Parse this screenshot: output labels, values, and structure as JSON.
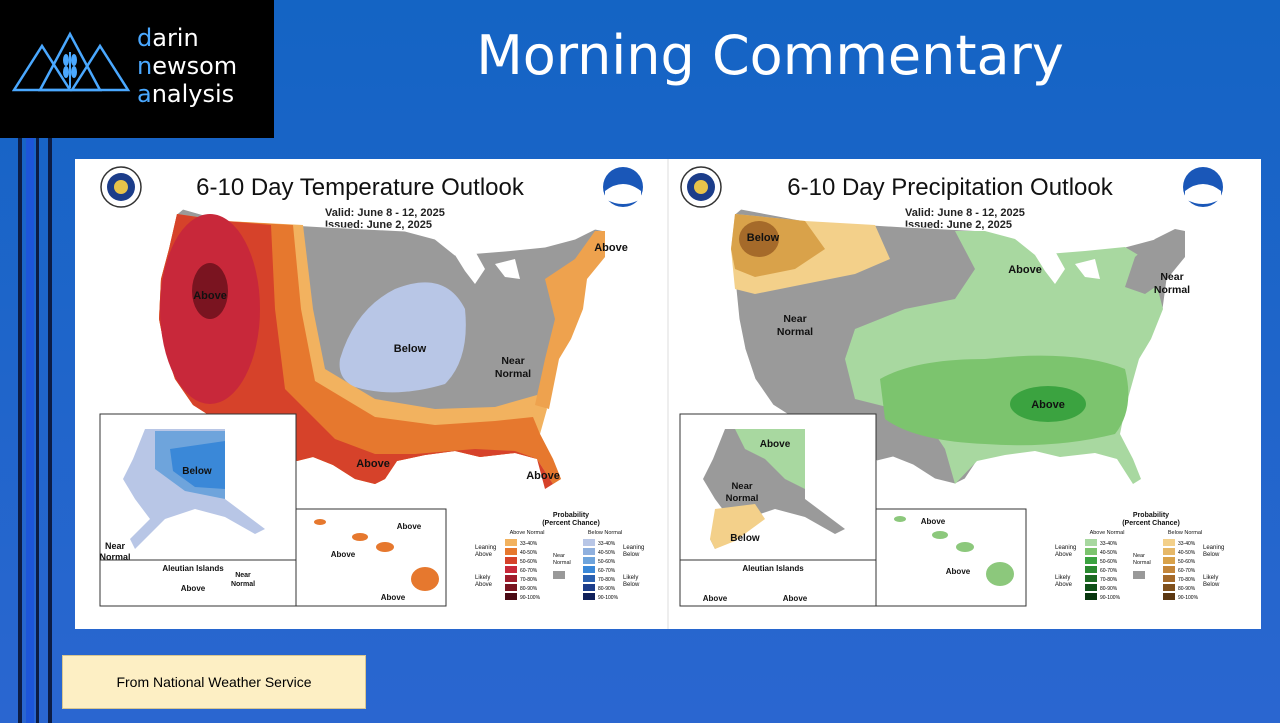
{
  "logo": {
    "line1": "darin",
    "line2": "newsom",
    "line3": "analysis"
  },
  "slide_title": "Morning Commentary",
  "source_note": "From National Weather Service",
  "colors": {
    "accent": "#4aa8ff",
    "background": "#1f66cc",
    "note_bg": "#fdefc4"
  },
  "temperature_map": {
    "title": "6-10 Day Temperature Outlook",
    "valid": "Valid:  June 8 - 12, 2025",
    "issued": "Issued:  June 2, 2025",
    "labels": {
      "above_west": "Above",
      "below_central": "Below",
      "near_normal": "Near\nNormal",
      "above_ne": "Above",
      "above_south": "Above",
      "above_fl": "Above",
      "below_ak": "Below",
      "near_normal_ak": "Near\nNormal",
      "aleutian": "Aleutian Islands",
      "above_aleutian": "Above",
      "near_normal_aleutian": "Near\nNormal",
      "above_hi1": "Above",
      "above_hi2": "Above",
      "above_hi3": "Above"
    },
    "legend": {
      "title": "Probability\n(Percent Chance)",
      "above_header": "Above Normal",
      "below_header": "Below Normal",
      "leaning_above": "Leaning\nAbove",
      "likely_above": "Likely\nAbove",
      "near": "Near\nNormal",
      "leaning_below": "Leaning\nBelow",
      "likely_below": "Likely\nBelow",
      "pct": [
        "33-40%",
        "40-50%",
        "50-60%",
        "60-70%",
        "70-80%",
        "80-90%",
        "90-100%"
      ]
    }
  },
  "precip_map": {
    "title": "6-10 Day Precipitation Outlook",
    "valid": "Valid:  June 8 - 12, 2025",
    "issued": "Issued:  June 2, 2025",
    "labels": {
      "below_nw": "Below",
      "above_ne": "Above",
      "near_normal_ne": "Near\nNormal",
      "near_normal_w": "Near\nNormal",
      "above_se": "Above",
      "above_ak": "Above",
      "near_normal_ak": "Near\nNormal",
      "below_ak": "Below",
      "aleutian": "Aleutian Islands",
      "above_aleutian1": "Above",
      "above_aleutian2": "Above",
      "above_hi1": "Above",
      "above_hi2": "Above"
    },
    "legend": {
      "title": "Probability\n(Percent Chance)",
      "above_header": "Above Normal",
      "below_header": "Below Normal",
      "leaning_above": "Leaning\nAbove",
      "likely_above": "Likely\nAbove",
      "near": "Near\nNormal",
      "leaning_below": "Leaning\nBelow",
      "likely_below": "Likely\nBelow",
      "pct": [
        "33-40%",
        "40-50%",
        "50-60%",
        "60-70%",
        "70-80%",
        "80-90%",
        "90-100%"
      ]
    }
  }
}
